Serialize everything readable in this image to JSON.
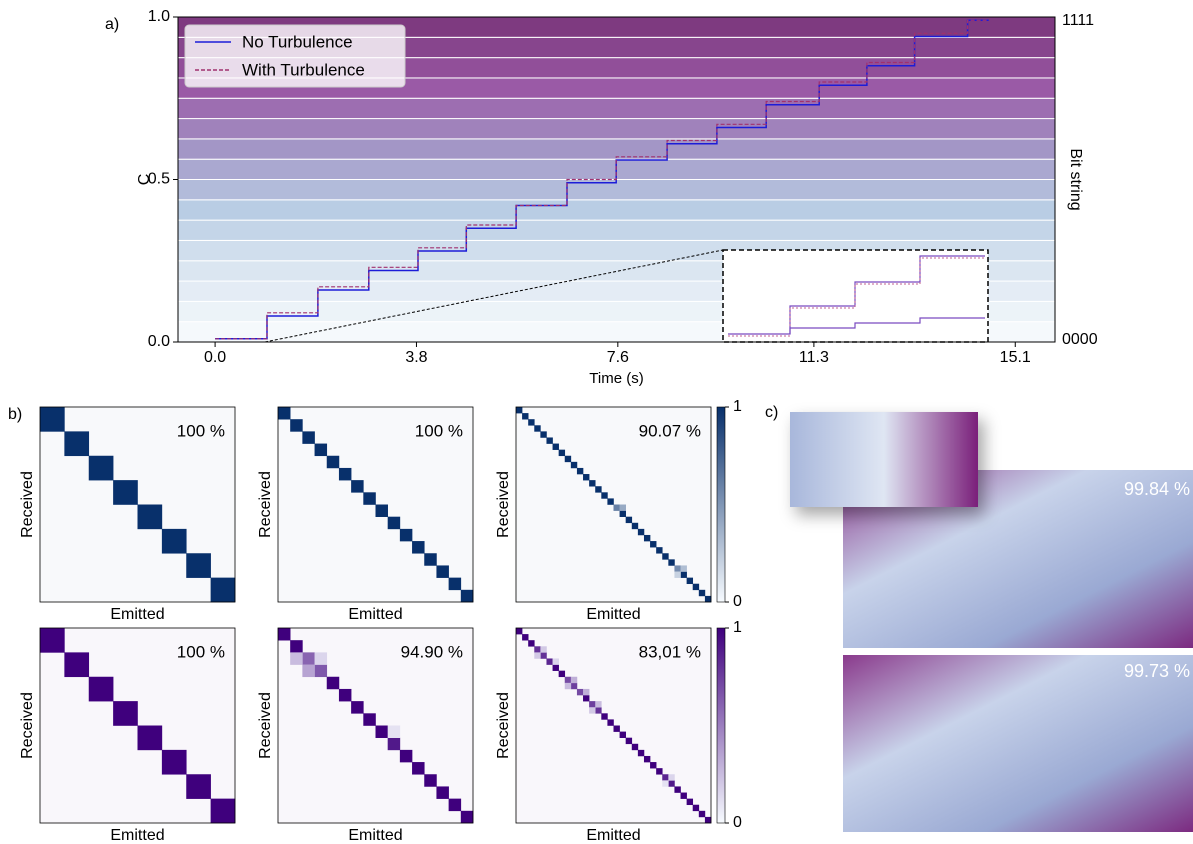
{
  "panel_labels": [
    "a)",
    "b)",
    "c)"
  ],
  "chart_data": [
    {
      "type": "line",
      "xlabel": "Time (s)",
      "ylabel": "C",
      "y2label": "Bit string",
      "y2_labels": [
        "1111",
        "0000"
      ],
      "legend": "upper left",
      "x": [
        0,
        0.98,
        0.98,
        1.94,
        1.94,
        2.9,
        2.9,
        3.83,
        3.83,
        4.74,
        4.74,
        5.68,
        5.68,
        6.64,
        6.64,
        7.57,
        7.57,
        8.53,
        8.53,
        9.47,
        9.47,
        10.4,
        10.4,
        11.4,
        11.4,
        12.3,
        12.3,
        13.2,
        13.2,
        14.2,
        14.2,
        14.6
      ],
      "series": [
        {
          "name": "No Turbulence",
          "color": "#1c1cd8",
          "linestyle": "solid",
          "values": [
            0.01,
            0.01,
            0.08,
            0.08,
            0.16,
            0.16,
            0.22,
            0.22,
            0.28,
            0.28,
            0.35,
            0.35,
            0.42,
            0.42,
            0.49,
            0.49,
            0.56,
            0.56,
            0.61,
            0.61,
            0.66,
            0.66,
            0.73,
            0.73,
            0.79,
            0.79,
            0.85,
            0.85,
            0.94,
            0.94,
            0.99,
            0.99
          ]
        },
        {
          "name": "With Turbulence",
          "color": "#a0306e",
          "linestyle": "dashed",
          "values": [
            0.01,
            0.01,
            0.09,
            0.09,
            0.17,
            0.17,
            0.23,
            0.23,
            0.29,
            0.29,
            0.36,
            0.36,
            0.42,
            0.42,
            0.5,
            0.5,
            0.57,
            0.57,
            0.62,
            0.62,
            0.67,
            0.67,
            0.74,
            0.74,
            0.8,
            0.8,
            0.86,
            0.86,
            0.95,
            0.95,
            0.99,
            0.99
          ]
        }
      ],
      "xlim": [
        -0.7,
        15.85
      ],
      "ylim": [
        0,
        1
      ],
      "xticks": [
        {
          "value": 0,
          "label": "0.0"
        },
        {
          "value": 3.8,
          "label": "3.8"
        },
        {
          "value": 7.6,
          "label": "7.6"
        },
        {
          "value": 11.3,
          "label": "11.3"
        },
        {
          "value": 15.1,
          "label": "15.1"
        }
      ],
      "yticks": [
        {
          "value": 0,
          "label": "0.0"
        },
        {
          "value": 0.5,
          "label": "0.5"
        },
        {
          "value": 1,
          "label": "1.0"
        }
      ]
    },
    {
      "type": "heatmap",
      "xlabel": "Emitted",
      "ylabel": "Received",
      "annotation": "100 %",
      "color": "#08306b",
      "diagonal": [
        1,
        1,
        1,
        1,
        1,
        1,
        1,
        1
      ],
      "off_diagonal": []
    },
    {
      "type": "heatmap",
      "xlabel": "Emitted",
      "ylabel": "Received",
      "annotation": "100 %",
      "color": "#08306b",
      "diagonal": [
        1,
        1,
        1,
        1,
        1,
        1,
        1,
        1,
        1,
        1,
        1,
        1,
        1,
        1,
        1,
        1
      ],
      "off_diagonal": []
    },
    {
      "type": "heatmap",
      "xlabel": "Emitted",
      "ylabel": "Received",
      "annotation": "90.07 %",
      "color": "#08306b",
      "diagonal": [
        1,
        1,
        1,
        1,
        1,
        1,
        1,
        1,
        1,
        1,
        1,
        1,
        1,
        1,
        1,
        1,
        0.6,
        1,
        1,
        1,
        1,
        1,
        1,
        1,
        1,
        1,
        0.55,
        1,
        1,
        1,
        1,
        1
      ],
      "off_diagonal": [
        {
          "row": 16,
          "col": 17,
          "value": 0.4
        },
        {
          "row": 26,
          "col": 27,
          "value": 0.3
        },
        {
          "row": 27,
          "col": 26,
          "value": 0.2
        }
      ],
      "colorbar_ticks": [
        0,
        1
      ]
    },
    {
      "type": "heatmap",
      "xlabel": "Emitted",
      "ylabel": "Received",
      "annotation": "100 %",
      "color": "#3f007d",
      "diagonal": [
        1,
        1,
        1,
        1,
        1,
        1,
        1,
        1
      ],
      "off_diagonal": []
    },
    {
      "type": "heatmap",
      "xlabel": "Emitted",
      "ylabel": "Received",
      "annotation": "94.90 %",
      "color": "#3f007d",
      "diagonal": [
        1,
        1,
        0.6,
        0.65,
        1,
        1,
        1,
        1,
        1,
        0.9,
        1,
        1,
        1,
        1,
        1,
        1
      ],
      "off_diagonal": [
        {
          "row": 2,
          "col": 1,
          "value": 0.25
        },
        {
          "row": 2,
          "col": 3,
          "value": 0.15
        },
        {
          "row": 3,
          "col": 2,
          "value": 0.35
        },
        {
          "row": 8,
          "col": 9,
          "value": 0.1
        }
      ]
    },
    {
      "type": "heatmap",
      "xlabel": "Emitted",
      "ylabel": "Received",
      "annotation": "83,01 %",
      "color": "#3f007d",
      "diagonal": [
        1,
        1,
        1,
        0.8,
        0.8,
        0.85,
        1,
        1,
        0.7,
        0.75,
        0.7,
        1,
        0.75,
        0.8,
        1,
        1,
        1,
        1,
        1,
        1,
        1,
        1,
        1,
        1,
        0.85,
        0.9,
        1,
        1,
        1,
        1,
        1,
        1
      ],
      "off_diagonal": [
        {
          "row": 3,
          "col": 4,
          "value": 0.2
        },
        {
          "row": 4,
          "col": 3,
          "value": 0.2
        },
        {
          "row": 5,
          "col": 6,
          "value": 0.15
        },
        {
          "row": 8,
          "col": 9,
          "value": 0.3
        },
        {
          "row": 9,
          "col": 8,
          "value": 0.25
        },
        {
          "row": 10,
          "col": 11,
          "value": 0.3
        },
        {
          "row": 12,
          "col": 13,
          "value": 0.25
        },
        {
          "row": 13,
          "col": 12,
          "value": 0.2
        },
        {
          "row": 24,
          "col": 25,
          "value": 0.15
        },
        {
          "row": 25,
          "col": 24,
          "value": 0.1
        }
      ],
      "colorbar_ticks": [
        0,
        1
      ]
    }
  ],
  "image_panel": {
    "labels": [
      "99.84 %",
      "99.73 %"
    ]
  }
}
